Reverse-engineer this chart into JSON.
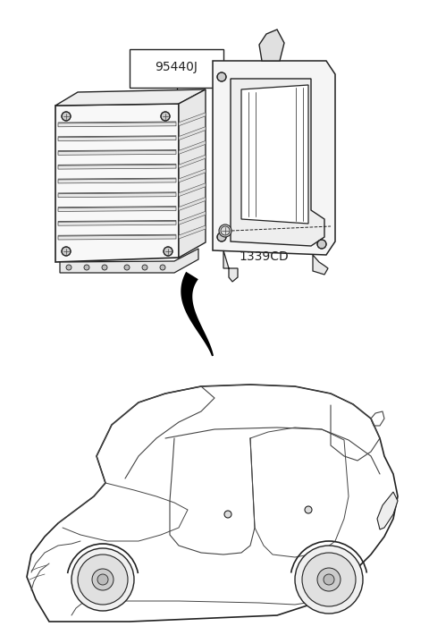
{
  "bg_color": "#ffffff",
  "lc": "#444444",
  "dc": "#222222",
  "label_95440J": "95440J",
  "label_1339CD": "1339CD",
  "fig_width": 4.8,
  "fig_height": 7.1,
  "dpi": 100
}
